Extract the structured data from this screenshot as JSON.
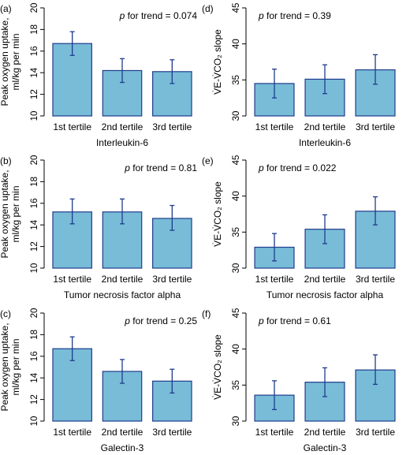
{
  "colors": {
    "bar_fill": "#78bcd8",
    "bar_stroke": "#1f3c8c",
    "error_bar": "#1f3c8c",
    "axis": "#000000"
  },
  "chart_data": [
    {
      "panel_label": "(a)",
      "type": "bar",
      "categories": [
        "1st tertile",
        "2nd tertile",
        "3rd tertile"
      ],
      "values": [
        16.7,
        14.2,
        14.1
      ],
      "error_low": [
        15.6,
        13.1,
        13.0
      ],
      "error_high": [
        17.8,
        15.3,
        15.2
      ],
      "ylim": [
        10,
        20
      ],
      "yticks": [
        10,
        12,
        14,
        16,
        18,
        20
      ],
      "ylabel_lines": [
        "Peak oxygen uptake,",
        "ml/kg per min"
      ],
      "xlabel": "Interleukin-6",
      "trend_p": "p",
      "trend_text": " for trend = 0.074"
    },
    {
      "panel_label": "(d)",
      "type": "bar",
      "categories": [
        "1st tertile",
        "2nd tertile",
        "3rd tertile"
      ],
      "values": [
        34.5,
        35.1,
        36.4
      ],
      "error_low": [
        32.5,
        33.1,
        34.4
      ],
      "error_high": [
        36.5,
        37.1,
        38.5
      ],
      "ylim": [
        30,
        45
      ],
      "yticks": [
        30,
        35,
        40,
        45
      ],
      "ylabel_lines": [
        "V̇E-V̇CO₂ slope"
      ],
      "xlabel": "Interleukin-6",
      "trend_p": "p",
      "trend_text": " for trend = 0.39"
    },
    {
      "panel_label": "(b)",
      "type": "bar",
      "categories": [
        "1st tertile",
        "2nd tertile",
        "3rd tertile"
      ],
      "values": [
        15.2,
        15.2,
        14.6
      ],
      "error_low": [
        14.1,
        14.1,
        13.5
      ],
      "error_high": [
        16.4,
        16.4,
        15.8
      ],
      "ylim": [
        10,
        20
      ],
      "yticks": [
        10,
        12,
        14,
        16,
        18,
        20
      ],
      "ylabel_lines": [
        "Peak oxygen uptake,",
        "ml/kg per min"
      ],
      "xlabel": "Tumor necrosis factor alpha",
      "trend_p": "p",
      "trend_text": " for trend = 0.81"
    },
    {
      "panel_label": "(e)",
      "type": "bar",
      "categories": [
        "1st tertile",
        "2nd tertile",
        "3rd tertile"
      ],
      "values": [
        32.9,
        35.4,
        37.9
      ],
      "error_low": [
        31.0,
        33.4,
        36.0
      ],
      "error_high": [
        34.8,
        37.4,
        39.9
      ],
      "ylim": [
        30,
        45
      ],
      "yticks": [
        30,
        35,
        40,
        45
      ],
      "ylabel_lines": [
        "V̇E-V̇CO₂ slope"
      ],
      "xlabel": "Tumor necrosis factor alpha",
      "trend_p": "p",
      "trend_text": " for trend = 0.022"
    },
    {
      "panel_label": "(c)",
      "type": "bar",
      "categories": [
        "1st tertile",
        "2nd tertile",
        "3rd tertile"
      ],
      "values": [
        16.7,
        14.6,
        13.7
      ],
      "error_low": [
        15.6,
        13.5,
        12.6
      ],
      "error_high": [
        17.8,
        15.7,
        14.8
      ],
      "ylim": [
        10,
        20
      ],
      "yticks": [
        10,
        12,
        14,
        16,
        18,
        20
      ],
      "ylabel_lines": [
        "Peak oxygen uptake,",
        "ml/kg per min"
      ],
      "xlabel": "Galectin-3",
      "trend_p": "p",
      "trend_text": " for trend = 0.25"
    },
    {
      "panel_label": "(f)",
      "type": "bar",
      "categories": [
        "1st tertile",
        "2nd tertile",
        "3rd tertile"
      ],
      "values": [
        33.6,
        35.4,
        37.1
      ],
      "error_low": [
        31.6,
        33.4,
        35.1
      ],
      "error_high": [
        35.6,
        37.4,
        39.2
      ],
      "ylim": [
        30,
        45
      ],
      "yticks": [
        30,
        35,
        40,
        45
      ],
      "ylabel_lines": [
        "V̇E-V̇CO₂ slope"
      ],
      "xlabel": "Galectin-3",
      "trend_p": "p",
      "trend_text": " for trend = 0.61"
    }
  ]
}
